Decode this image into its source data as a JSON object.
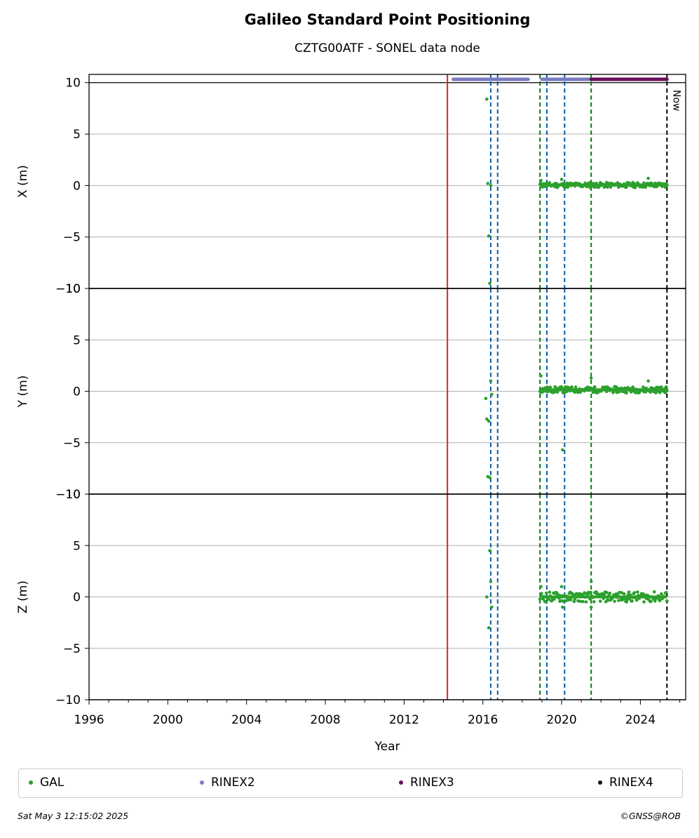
{
  "header": {
    "title": "Galileo Standard Point Positioning",
    "subtitle": "CZTG00ATF - SONEL data node"
  },
  "footer": {
    "date": "Sat May  3 12:15:02 2025",
    "credit": "©GNSS@ROB"
  },
  "now_label": "Now",
  "colors": {
    "gal": "#2ca02c",
    "rinex2": "#7b7bbf",
    "rinex3": "#6a0f5a",
    "rinex4": "#1a0a1f",
    "red_line": "#d62728",
    "blue_line": "#0b5ea8",
    "green_line": "#008000",
    "grid": "#b0b0b0"
  },
  "legend": [
    {
      "label": "GAL",
      "color": "#2ca02c"
    },
    {
      "label": "RINEX2",
      "color": "#7b7bbf"
    },
    {
      "label": "RINEX3",
      "color": "#6a0f5a"
    },
    {
      "label": "RINEX4",
      "color": "#1a0a1f"
    }
  ],
  "chart_data": {
    "type": "scatter",
    "title": "Galileo Standard Point Positioning",
    "subtitle": "CZTG00ATF - SONEL data node",
    "xlabel": "Year",
    "xlim": [
      1996,
      2026.3
    ],
    "xticks": [
      1996,
      2000,
      2004,
      2008,
      2012,
      2016,
      2020,
      2024
    ],
    "yticks": [
      -10,
      -5,
      0,
      5,
      10
    ],
    "grid": "horizontal",
    "legend_position": "bottom",
    "panels": [
      {
        "ylabel": "X (m)",
        "ylim": [
          -10,
          10.8
        ],
        "outliers": [
          [
            2016.2,
            8.4
          ],
          [
            2016.25,
            0.2
          ],
          [
            2016.3,
            -4.9
          ],
          [
            2016.35,
            -9.5
          ],
          [
            2016.4,
            0.0
          ],
          [
            2018.95,
            0.5
          ],
          [
            2020.0,
            0.6
          ],
          [
            2024.4,
            0.7
          ]
        ],
        "band": {
          "start": 2018.9,
          "end": 2025.35,
          "center": 0.05,
          "spread": 0.25
        }
      },
      {
        "ylabel": "Y (m)",
        "ylim": [
          -10,
          10
        ],
        "outliers": [
          [
            2016.15,
            -0.7
          ],
          [
            2016.2,
            -2.7
          ],
          [
            2016.3,
            -2.9
          ],
          [
            2016.25,
            -8.3
          ],
          [
            2016.35,
            -8.4
          ],
          [
            2016.4,
            1.0
          ],
          [
            2016.45,
            -0.3
          ],
          [
            2018.95,
            1.5
          ],
          [
            2020.05,
            -5.7
          ],
          [
            2021.5,
            1.3
          ],
          [
            2024.4,
            1.0
          ]
        ],
        "band": {
          "start": 2018.9,
          "end": 2025.35,
          "center": 0.15,
          "spread": 0.3
        }
      },
      {
        "ylabel": "Z (m)",
        "ylim": [
          -10,
          10
        ],
        "outliers": [
          [
            2016.2,
            0.0
          ],
          [
            2016.3,
            -3.0
          ],
          [
            2016.35,
            4.5
          ],
          [
            2016.4,
            1.5
          ],
          [
            2016.45,
            -1.0
          ],
          [
            2018.95,
            1.0
          ],
          [
            2020.0,
            1.0
          ],
          [
            2020.05,
            -1.0
          ],
          [
            2021.5,
            1.5
          ],
          [
            2021.5,
            -1.0
          ]
        ],
        "band": {
          "start": 2018.9,
          "end": 2025.35,
          "center": 0.0,
          "spread": 0.5
        }
      }
    ],
    "series": [
      {
        "name": "GAL",
        "color": "#2ca02c"
      },
      {
        "name": "RINEX2",
        "color": "#7b7bbf",
        "availability": [
          [
            2014.5,
            2018.3
          ],
          [
            2019.0,
            2021.5
          ]
        ]
      },
      {
        "name": "RINEX3",
        "color": "#6a0f5a",
        "availability": [
          [
            2021.5,
            2025.35
          ]
        ]
      },
      {
        "name": "RINEX4",
        "color": "#1a0a1f",
        "availability": []
      }
    ],
    "vertical_lines": [
      {
        "x": 2014.2,
        "color": "red",
        "style": "solid"
      },
      {
        "x": 2016.4,
        "color": "blue",
        "style": "dashed"
      },
      {
        "x": 2016.75,
        "color": "blue",
        "style": "dashed"
      },
      {
        "x": 2018.9,
        "color": "green",
        "style": "dashed"
      },
      {
        "x": 2019.25,
        "color": "blue",
        "style": "dashed"
      },
      {
        "x": 2020.15,
        "color": "blue",
        "style": "dashed"
      },
      {
        "x": 2021.5,
        "color": "green",
        "style": "dashed"
      },
      {
        "x": 2025.35,
        "color": "black",
        "style": "dashed",
        "label": "Now"
      }
    ]
  }
}
